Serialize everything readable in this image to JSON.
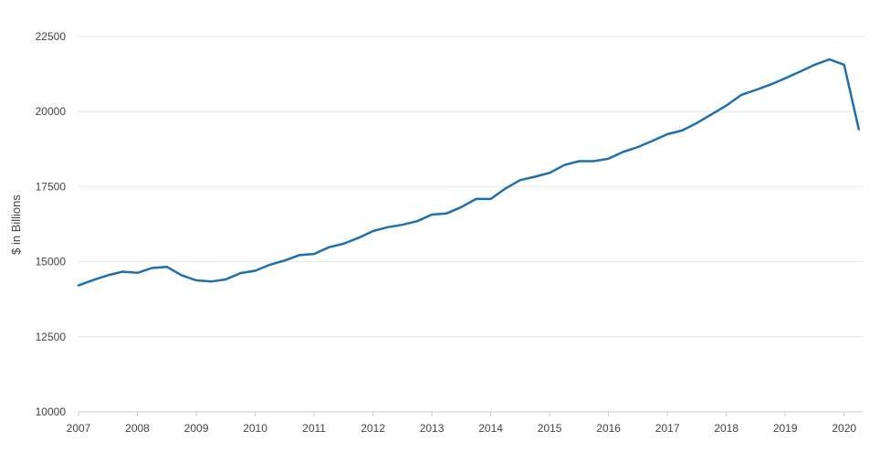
{
  "chart_data": {
    "type": "line",
    "title": "",
    "xlabel": "",
    "ylabel": "$ in Billions",
    "xlim": [
      2007,
      2020.33
    ],
    "ylim": [
      10000,
      22500
    ],
    "grid": true,
    "line_color": "#1f6faf",
    "y_ticks": [
      10000,
      12500,
      15000,
      17500,
      20000,
      22500
    ],
    "y_tick_labels": [
      "10000",
      "12500",
      "15000",
      "17500",
      "20000",
      "22500"
    ],
    "x_ticks": [
      2007,
      2008,
      2009,
      2010,
      2011,
      2012,
      2013,
      2014,
      2015,
      2016,
      2017,
      2018,
      2019,
      2020
    ],
    "x_tick_labels": [
      "2007",
      "2008",
      "2009",
      "2010",
      "2011",
      "2012",
      "2013",
      "2014",
      "2015",
      "2016",
      "2017",
      "2018",
      "2019",
      "2020"
    ],
    "series": [
      {
        "x": [
          2007.0,
          2007.25,
          2007.5,
          2007.75,
          2008.0,
          2008.25,
          2008.5,
          2008.75,
          2009.0,
          2009.25,
          2009.5,
          2009.75,
          2010.0,
          2010.25,
          2010.5,
          2010.75,
          2011.0,
          2011.25,
          2011.5,
          2011.75,
          2012.0,
          2012.25,
          2012.5,
          2012.75,
          2013.0,
          2013.25,
          2013.5,
          2013.75,
          2014.0,
          2014.25,
          2014.5,
          2014.75,
          2015.0,
          2015.25,
          2015.5,
          2015.75,
          2016.0,
          2016.25,
          2016.5,
          2016.75,
          2017.0,
          2017.25,
          2017.5,
          2017.75,
          2018.0,
          2018.25,
          2018.5,
          2018.75,
          2019.0,
          2019.25,
          2019.5,
          2019.75,
          2020.0,
          2020.25
        ],
        "values": [
          14210,
          14390,
          14550,
          14670,
          14630,
          14790,
          14830,
          14550,
          14380,
          14340,
          14410,
          14620,
          14700,
          14900,
          15040,
          15220,
          15260,
          15480,
          15600,
          15790,
          16020,
          16150,
          16230,
          16350,
          16570,
          16610,
          16820,
          17090,
          17090,
          17440,
          17720,
          17830,
          17960,
          18220,
          18350,
          18350,
          18430,
          18660,
          18820,
          19030,
          19250,
          19370,
          19620,
          19910,
          20200,
          20550,
          20720,
          20900,
          21110,
          21330,
          21560,
          21740,
          21560,
          19410
        ]
      }
    ]
  }
}
